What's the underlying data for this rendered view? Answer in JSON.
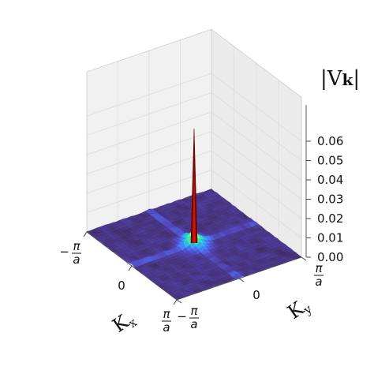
{
  "chart_data": {
    "type": "surface3d",
    "title": "",
    "xlabel": "K",
    "xlabel_sub": "x",
    "ylabel": "K",
    "ylabel_sub": "y",
    "zlabel_bars": "|V",
    "zlabel_bold": "k",
    "zlabel_close": "|",
    "zlim": [
      0.0,
      0.06
    ],
    "z_ticks": [
      "0.00",
      "0.01",
      "0.02",
      "0.03",
      "0.04",
      "0.05",
      "0.06"
    ],
    "x_ticks": [
      {
        "num": "π",
        "den": "a",
        "sign": "−",
        "value": -1
      },
      {
        "label": "0",
        "value": 0
      },
      {
        "num": "π",
        "den": "a",
        "sign": "",
        "value": 1
      }
    ],
    "y_ticks": [
      {
        "num": "π",
        "den": "a",
        "sign": "",
        "value": 1
      },
      {
        "label": "0",
        "value": 0
      },
      {
        "num": "π",
        "den": "a",
        "sign": "−",
        "value": -1
      }
    ],
    "peak": {
      "kx": 0,
      "ky": 0,
      "value": 0.06
    },
    "colormap": "turbo",
    "grid": true
  }
}
